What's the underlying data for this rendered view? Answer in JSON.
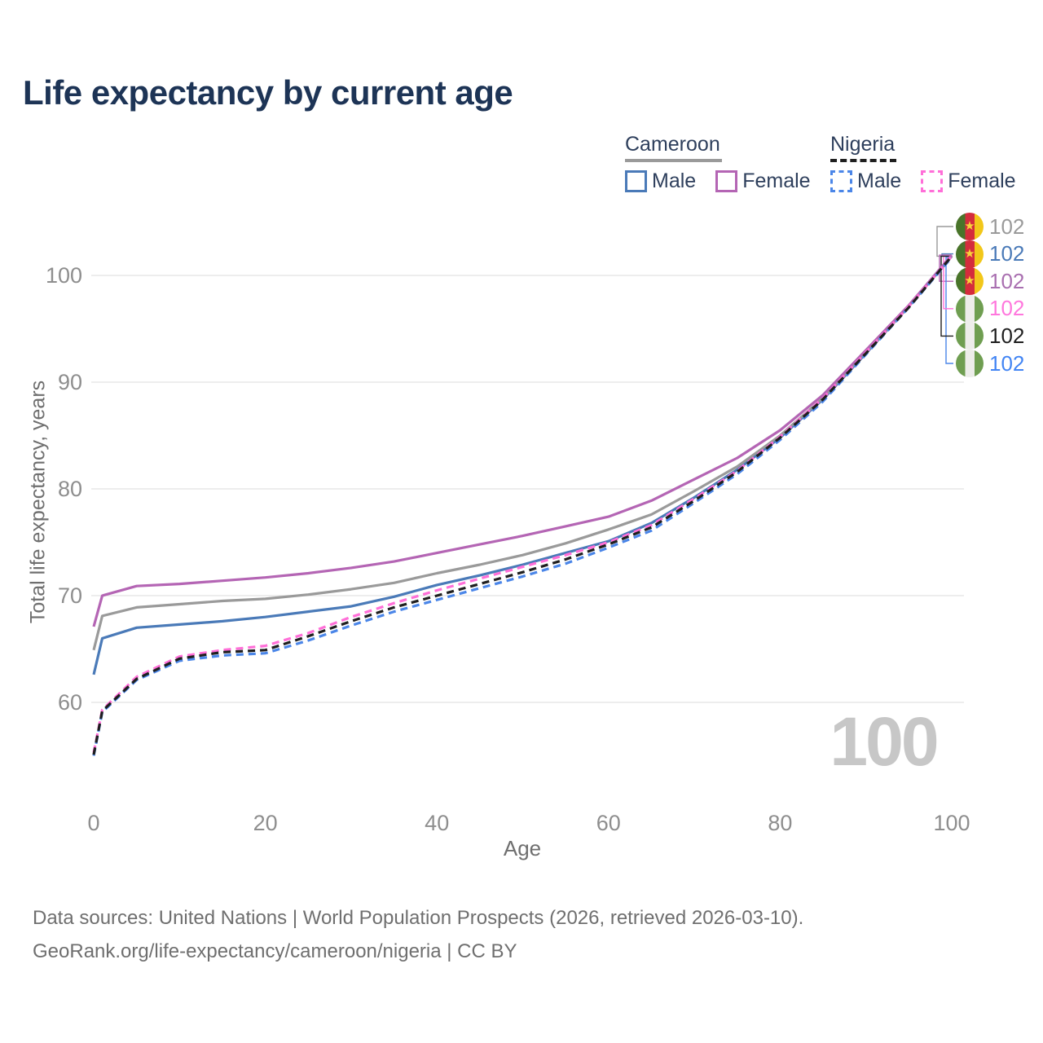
{
  "header": {
    "title": "Life expectancy by current age"
  },
  "legend": {
    "groups": [
      {
        "id": "cameroon",
        "label": "Cameroon",
        "line_color": "#9a9a9a",
        "line_style": "solid",
        "items": [
          {
            "id": "male",
            "label": "Male",
            "box_color": "#4a7ab8",
            "box_style": "solid"
          },
          {
            "id": "female",
            "label": "Female",
            "box_color": "#b465b4",
            "box_style": "solid"
          }
        ]
      },
      {
        "id": "nigeria",
        "label": "Nigeria",
        "line_color": "#1f1f1f",
        "line_style": "dashed",
        "items": [
          {
            "id": "male",
            "label": "Male",
            "box_color": "#4b86e8",
            "box_style": "dashed"
          },
          {
            "id": "female",
            "label": "Female",
            "box_color": "#ff6fd8",
            "box_style": "dashed"
          }
        ]
      }
    ]
  },
  "right_labels": [
    {
      "country": "cameroon",
      "value": "102",
      "color": "#9a9a9a"
    },
    {
      "country": "cameroon",
      "value": "102",
      "color": "#4a7ab8"
    },
    {
      "country": "cameroon",
      "value": "102",
      "color": "#a96fb0"
    },
    {
      "country": "nigeria",
      "value": "102",
      "color": "#ff77dd"
    },
    {
      "country": "nigeria",
      "value": "102",
      "color": "#1f1f1f"
    },
    {
      "country": "nigeria",
      "value": "102",
      "color": "#4285f4"
    }
  ],
  "icons": {
    "cameroon_star": "★"
  },
  "watermark": {
    "text": "100"
  },
  "footer": {
    "line1": "Data sources: United Nations | World Population Prospects (2026, retrieved 2026-03-10).",
    "line2": "GeoRank.org/life-expectancy/cameroon/nigeria | CC BY"
  },
  "chart_data": {
    "type": "line",
    "title": "Life expectancy by current age",
    "xlabel": "Age",
    "ylabel": "Total life expectancy, years",
    "x_ticks": [
      0,
      20,
      40,
      60,
      80,
      100
    ],
    "y_ticks": [
      60,
      70,
      80,
      90,
      100
    ],
    "xlim": [
      0,
      100
    ],
    "ylim": [
      54,
      104.5
    ],
    "grid": "horizontal",
    "legend_position": "top-right",
    "current_age_display": "100",
    "ages": [
      0,
      1,
      5,
      10,
      15,
      20,
      25,
      30,
      35,
      40,
      45,
      50,
      55,
      60,
      65,
      70,
      75,
      80,
      85,
      90,
      95,
      100
    ],
    "series": [
      {
        "country": "Cameroon",
        "sex": "male",
        "key": "cameroon-male",
        "color": "#4a7ab8",
        "dash": false,
        "end_label": "102",
        "label_row": 1,
        "values": [
          62.6,
          66.0,
          67.0,
          67.3,
          67.6,
          68.0,
          68.5,
          69.0,
          69.9,
          71.0,
          71.9,
          72.9,
          74.0,
          75.1,
          76.8,
          79.2,
          81.8,
          84.8,
          88.4,
          92.7,
          97.1,
          101.8
        ]
      },
      {
        "country": "Cameroon",
        "sex": "all",
        "key": "cameroon-all",
        "color": "#9a9a9a",
        "dash": false,
        "end_label": "102",
        "label_row": 0,
        "values": [
          64.9,
          68.1,
          68.9,
          69.2,
          69.5,
          69.7,
          70.1,
          70.6,
          71.2,
          72.1,
          72.9,
          73.8,
          74.9,
          76.2,
          77.6,
          79.8,
          82.1,
          85.0,
          88.5,
          92.8,
          97.1,
          101.8
        ]
      },
      {
        "country": "Cameroon",
        "sex": "female",
        "key": "cameroon-female",
        "color": "#b465b4",
        "dash": false,
        "end_label": "102",
        "label_row": 2,
        "values": [
          67.1,
          70.0,
          70.9,
          71.1,
          71.4,
          71.7,
          72.1,
          72.6,
          73.2,
          74.0,
          74.8,
          75.6,
          76.5,
          77.4,
          78.9,
          80.9,
          82.9,
          85.5,
          88.8,
          93.0,
          97.2,
          101.9
        ]
      },
      {
        "country": "Nigeria",
        "sex": "male",
        "key": "nigeria-male",
        "color": "#4b86e8",
        "dash": true,
        "end_label": "102",
        "label_row": 5,
        "values": [
          55.0,
          59.1,
          62.1,
          63.9,
          64.4,
          64.6,
          65.8,
          67.2,
          68.5,
          69.6,
          70.7,
          71.8,
          73.0,
          74.5,
          76.1,
          78.7,
          81.4,
          84.6,
          88.2,
          92.6,
          97.0,
          101.7
        ]
      },
      {
        "country": "Nigeria",
        "sex": "female",
        "key": "nigeria-female",
        "color": "#ff6fd8",
        "dash": true,
        "end_label": "102",
        "label_row": 3,
        "values": [
          55.3,
          59.3,
          62.4,
          64.3,
          64.9,
          65.3,
          66.5,
          68.0,
          69.3,
          70.5,
          71.6,
          72.7,
          73.8,
          75.0,
          76.6,
          79.1,
          81.7,
          84.9,
          88.5,
          92.8,
          97.1,
          101.8
        ]
      },
      {
        "country": "Nigeria",
        "sex": "all",
        "key": "nigeria-all",
        "color": "#1f1f1f",
        "dash": true,
        "end_label": "102",
        "label_row": 4,
        "values": [
          55.1,
          59.2,
          62.2,
          64.1,
          64.7,
          64.9,
          66.2,
          67.6,
          68.9,
          70.0,
          71.1,
          72.2,
          73.4,
          74.8,
          76.4,
          78.9,
          81.6,
          84.8,
          88.4,
          92.7,
          97.0,
          101.8
        ]
      }
    ]
  }
}
